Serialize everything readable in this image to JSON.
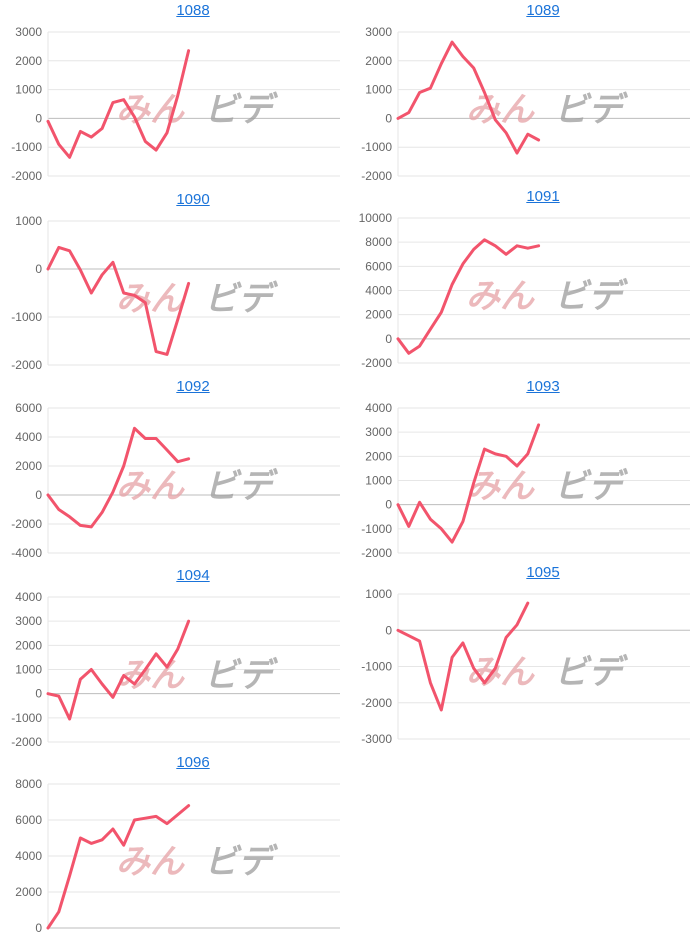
{
  "watermark": {
    "text_a": "みん",
    "text_b": "ビデ"
  },
  "colors": {
    "line": "#f2546c",
    "grid": "#e6e6e6",
    "zero": "#bdbdbd",
    "title": "#1a73d9",
    "tick": "#666666"
  },
  "chart_data": [
    {
      "type": "line",
      "title": "1088",
      "ylim": [
        -2000,
        3000
      ],
      "yticks": [
        3000,
        2000,
        1000,
        0,
        -1000,
        -2000
      ],
      "values": [
        -100,
        -900,
        -1350,
        -450,
        -650,
        -350,
        550,
        650,
        50,
        -800,
        -1100,
        -500,
        800,
        2350
      ]
    },
    {
      "type": "line",
      "title": "1089",
      "ylim": [
        -2000,
        3000
      ],
      "yticks": [
        3000,
        2000,
        1000,
        0,
        -1000,
        -2000
      ],
      "values": [
        0,
        200,
        900,
        1050,
        1900,
        2650,
        2150,
        1750,
        900,
        -50,
        -500,
        -1200,
        -550,
        -750
      ]
    },
    {
      "type": "line",
      "title": "1090",
      "ylim": [
        -2000,
        1000
      ],
      "yticks": [
        1000,
        0,
        -1000,
        -2000
      ],
      "values": [
        0,
        450,
        380,
        -20,
        -500,
        -120,
        140,
        -500,
        -550,
        -700,
        -1720,
        -1780,
        -1050,
        -300
      ]
    },
    {
      "type": "line",
      "title": "1091",
      "ylim": [
        -2000,
        10000
      ],
      "yticks": [
        10000,
        8000,
        6000,
        4000,
        2000,
        0,
        -2000
      ],
      "values": [
        0,
        -1200,
        -600,
        800,
        2200,
        4500,
        6200,
        7400,
        8200,
        7700,
        7000,
        7700,
        7500,
        7700
      ]
    },
    {
      "type": "line",
      "title": "1092",
      "ylim": [
        -4000,
        6000
      ],
      "yticks": [
        6000,
        4000,
        2000,
        0,
        -2000,
        -4000
      ],
      "values": [
        0,
        -1000,
        -1500,
        -2100,
        -2200,
        -1200,
        200,
        2000,
        4600,
        3900,
        3900,
        3100,
        2300,
        2500
      ]
    },
    {
      "type": "line",
      "title": "1093",
      "ylim": [
        -2000,
        4000
      ],
      "yticks": [
        4000,
        3000,
        2000,
        1000,
        0,
        -1000,
        -2000
      ],
      "values": [
        0,
        -900,
        100,
        -600,
        -1000,
        -1550,
        -700,
        900,
        2300,
        2100,
        2000,
        1600,
        2100,
        3300
      ]
    },
    {
      "type": "line",
      "title": "1094",
      "ylim": [
        -2000,
        4000
      ],
      "yticks": [
        4000,
        3000,
        2000,
        1000,
        0,
        -1000,
        -2000
      ],
      "values": [
        0,
        -100,
        -1050,
        600,
        1000,
        400,
        -150,
        750,
        400,
        1000,
        1650,
        1100,
        1850,
        3000
      ]
    },
    {
      "type": "line",
      "title": "1095",
      "ylim": [
        -3000,
        1000
      ],
      "yticks": [
        1000,
        0,
        -1000,
        -2000,
        -3000
      ],
      "values": [
        0,
        -150,
        -300,
        -1450,
        -2200,
        -750,
        -350,
        -1050,
        -1450,
        -1050,
        -200,
        150,
        750
      ]
    },
    {
      "type": "line",
      "title": "1096",
      "ylim": [
        0,
        8000
      ],
      "yticks": [
        8000,
        6000,
        4000,
        2000,
        0
      ],
      "values": [
        0,
        900,
        2900,
        5000,
        4700,
        4900,
        5500,
        4600,
        6000,
        6100,
        6200,
        5800,
        6300,
        6800
      ]
    }
  ]
}
